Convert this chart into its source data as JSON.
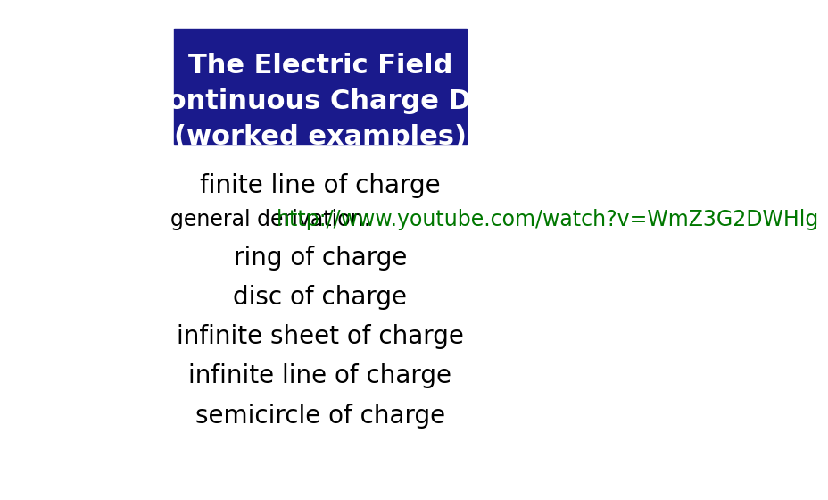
{
  "title_line1": "The Electric Field",
  "title_line2": "Due to a Continuous Charge Distribution",
  "title_line3": "(worked examples)",
  "title_bg_color": "#1a1a8c",
  "title_text_color": "#ffffff",
  "bg_color": "#ffffff",
  "finite_line": "finite line of charge",
  "derivation_label": "general derivation:  ",
  "url_text": "http://www.youtube.com/watch?v=WmZ3G2DWHlg",
  "url_color": "#007700",
  "items": [
    "ring of charge",
    "disc of charge",
    "infinite sheet of charge",
    "infinite line of charge",
    "semicircle of charge"
  ],
  "text_color": "#000000",
  "title_fontsize": 22,
  "item_fontsize": 20,
  "derivation_fontsize": 17,
  "finite_fontsize": 20
}
